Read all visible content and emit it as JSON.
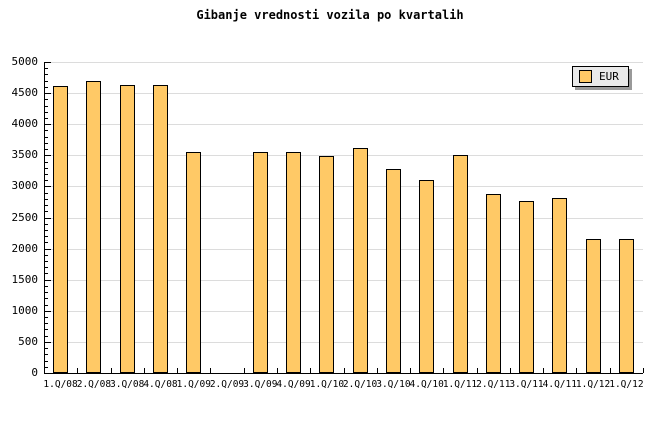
{
  "title": "Gibanje vrednosti vozila po kvartalih",
  "legend": {
    "label": "EUR"
  },
  "colors": {
    "bar_fill": "#FFC966",
    "bar_border": "#000000",
    "grid": "#DCDCDC",
    "axis": "#000000",
    "legend_bg": "#E9E9E9",
    "legend_shadow": "#999999",
    "background": "#FFFFFF"
  },
  "chart_data": {
    "type": "bar",
    "title": "Gibanje vrednosti vozila po kvartalih",
    "categories": [
      "1.Q/08",
      "2.Q/08",
      "3.Q/08",
      "4.Q/08",
      "1.Q/09",
      "2.Q/09",
      "3.Q/09",
      "4.Q/09",
      "1.Q/10",
      "2.Q/10",
      "3.Q/10",
      "4.Q/10",
      "1.Q/11",
      "2.Q/11",
      "3.Q/11",
      "4.Q/11",
      "1.Q/12",
      "1.Q/12"
    ],
    "series": [
      {
        "name": "EUR",
        "values": [
          4620,
          4690,
          4630,
          4630,
          3550,
          null,
          3560,
          3550,
          3490,
          3620,
          3280,
          3100,
          3500,
          2880,
          2760,
          2810,
          2160,
          2160
        ]
      }
    ],
    "missing_categories": [
      "2.Q/09"
    ],
    "xlabel": "",
    "ylabel": "",
    "ylim": [
      0,
      5000
    ],
    "ytick_step": 500,
    "yminor_step": 100,
    "grid": "horizontal",
    "legend_position": "top-right"
  }
}
